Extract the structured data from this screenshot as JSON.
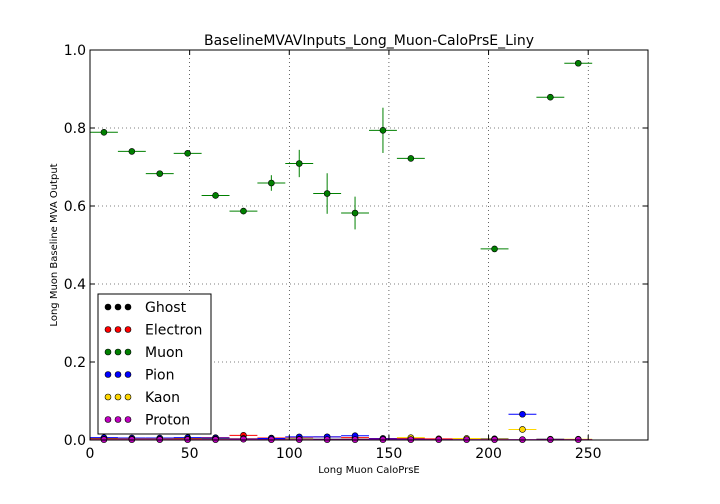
{
  "chart_data": {
    "type": "scatter",
    "title": "BaselineMVAVInputs_Long_Muon-CaloPrsE_Liny",
    "xlabel": "Long Muon CaloPrsE",
    "ylabel": "Long Muon Baseline MVA Output",
    "xlim": [
      0,
      280
    ],
    "ylim": [
      0,
      1.0
    ],
    "xticks": [
      "0",
      "50",
      "100",
      "150",
      "200",
      "250"
    ],
    "yticks": [
      "0.0",
      "0.2",
      "0.4",
      "0.6",
      "0.8",
      "1.0"
    ],
    "grid": true,
    "legend_position": "lower-left",
    "bin_half_width": 7,
    "series": [
      {
        "name": "Ghost",
        "color": "#000000",
        "points": [
          {
            "x": 7,
            "y": 0.005,
            "err": 0.002
          },
          {
            "x": 21,
            "y": 0.004,
            "err": 0.002
          },
          {
            "x": 35,
            "y": 0.003,
            "err": 0.002
          },
          {
            "x": 49,
            "y": 0.004,
            "err": 0.002
          },
          {
            "x": 63,
            "y": 0.004,
            "err": 0.002
          },
          {
            "x": 77,
            "y": 0.003,
            "err": 0.002
          },
          {
            "x": 91,
            "y": 0.003,
            "err": 0.002
          },
          {
            "x": 105,
            "y": 0.003,
            "err": 0.002
          },
          {
            "x": 119,
            "y": 0.002,
            "err": 0.002
          },
          {
            "x": 133,
            "y": 0.002,
            "err": 0.002
          },
          {
            "x": 147,
            "y": 0.002,
            "err": 0.002
          },
          {
            "x": 161,
            "y": 0.002,
            "err": 0.002
          },
          {
            "x": 175,
            "y": 0.002,
            "err": 0.002
          },
          {
            "x": 203,
            "y": 0.003,
            "err": 0.002
          },
          {
            "x": 231,
            "y": 0.002,
            "err": 0.002
          }
        ]
      },
      {
        "name": "Electron",
        "color": "#ff0000",
        "points": [
          {
            "x": 7,
            "y": 0.003,
            "err": 0.002
          },
          {
            "x": 21,
            "y": 0.003,
            "err": 0.002
          },
          {
            "x": 35,
            "y": 0.004,
            "err": 0.002
          },
          {
            "x": 49,
            "y": 0.005,
            "err": 0.002
          },
          {
            "x": 63,
            "y": 0.006,
            "err": 0.002
          },
          {
            "x": 77,
            "y": 0.012,
            "err": 0.003
          },
          {
            "x": 91,
            "y": 0.005,
            "err": 0.002
          },
          {
            "x": 105,
            "y": 0.007,
            "err": 0.002
          },
          {
            "x": 119,
            "y": 0.008,
            "err": 0.003
          },
          {
            "x": 133,
            "y": 0.006,
            "err": 0.003
          },
          {
            "x": 147,
            "y": 0.004,
            "err": 0.002
          },
          {
            "x": 161,
            "y": 0.004,
            "err": 0.002
          },
          {
            "x": 175,
            "y": 0.003,
            "err": 0.002
          }
        ]
      },
      {
        "name": "Muon",
        "color": "#008000",
        "points": [
          {
            "x": 7,
            "y": 0.789,
            "err": 0.003
          },
          {
            "x": 21,
            "y": 0.74,
            "err": 0.004
          },
          {
            "x": 35,
            "y": 0.683,
            "err": 0.005
          },
          {
            "x": 49,
            "y": 0.735,
            "err": 0.005
          },
          {
            "x": 63,
            "y": 0.627,
            "err": 0.008
          },
          {
            "x": 77,
            "y": 0.587,
            "err": 0.008
          },
          {
            "x": 91,
            "y": 0.659,
            "err": 0.02
          },
          {
            "x": 105,
            "y": 0.709,
            "err": 0.035
          },
          {
            "x": 119,
            "y": 0.632,
            "err": 0.052
          },
          {
            "x": 133,
            "y": 0.582,
            "err": 0.042
          },
          {
            "x": 147,
            "y": 0.794,
            "err": 0.058
          },
          {
            "x": 161,
            "y": 0.722,
            "err": 0.005
          },
          {
            "x": 203,
            "y": 0.49,
            "err": 0.005
          },
          {
            "x": 231,
            "y": 0.879,
            "err": 0.004
          },
          {
            "x": 245,
            "y": 0.966,
            "err": 0.004
          }
        ]
      },
      {
        "name": "Pion",
        "color": "#0000ff",
        "points": [
          {
            "x": 7,
            "y": 0.006,
            "err": 0.002
          },
          {
            "x": 21,
            "y": 0.005,
            "err": 0.002
          },
          {
            "x": 35,
            "y": 0.005,
            "err": 0.002
          },
          {
            "x": 49,
            "y": 0.006,
            "err": 0.002
          },
          {
            "x": 63,
            "y": 0.005,
            "err": 0.002
          },
          {
            "x": 77,
            "y": 0.004,
            "err": 0.002
          },
          {
            "x": 91,
            "y": 0.004,
            "err": 0.002
          },
          {
            "x": 105,
            "y": 0.008,
            "err": 0.003
          },
          {
            "x": 119,
            "y": 0.008,
            "err": 0.003
          },
          {
            "x": 133,
            "y": 0.011,
            "err": 0.003
          },
          {
            "x": 147,
            "y": 0.003,
            "err": 0.002
          },
          {
            "x": 161,
            "y": 0.002,
            "err": 0.002
          },
          {
            "x": 217,
            "y": 0.066,
            "err": 0.004
          }
        ]
      },
      {
        "name": "Kaon",
        "color": "#ffd700",
        "points": [
          {
            "x": 7,
            "y": 0.002,
            "err": 0.002
          },
          {
            "x": 21,
            "y": 0.002,
            "err": 0.002
          },
          {
            "x": 35,
            "y": 0.002,
            "err": 0.002
          },
          {
            "x": 49,
            "y": 0.002,
            "err": 0.002
          },
          {
            "x": 63,
            "y": 0.002,
            "err": 0.002
          },
          {
            "x": 77,
            "y": 0.003,
            "err": 0.002
          },
          {
            "x": 105,
            "y": 0.002,
            "err": 0.002
          },
          {
            "x": 161,
            "y": 0.006,
            "err": 0.002
          },
          {
            "x": 189,
            "y": 0.004,
            "err": 0.002
          },
          {
            "x": 203,
            "y": 0.002,
            "err": 0.002
          },
          {
            "x": 217,
            "y": 0.027,
            "err": 0.004
          },
          {
            "x": 245,
            "y": 0.002,
            "err": 0.002
          }
        ]
      },
      {
        "name": "Proton",
        "color": "#c000c0",
        "points": [
          {
            "x": 7,
            "y": 0.001,
            "err": 0.001
          },
          {
            "x": 21,
            "y": 0.001,
            "err": 0.001
          },
          {
            "x": 35,
            "y": 0.001,
            "err": 0.001
          },
          {
            "x": 49,
            "y": 0.001,
            "err": 0.001
          },
          {
            "x": 63,
            "y": 0.001,
            "err": 0.001
          },
          {
            "x": 77,
            "y": 0.002,
            "err": 0.001
          },
          {
            "x": 91,
            "y": 0.001,
            "err": 0.001
          },
          {
            "x": 105,
            "y": 0.001,
            "err": 0.001
          },
          {
            "x": 119,
            "y": 0.001,
            "err": 0.001
          },
          {
            "x": 133,
            "y": 0.001,
            "err": 0.001
          },
          {
            "x": 147,
            "y": 0.001,
            "err": 0.001
          },
          {
            "x": 161,
            "y": 0.001,
            "err": 0.001
          },
          {
            "x": 175,
            "y": 0.001,
            "err": 0.001
          },
          {
            "x": 189,
            "y": 0.001,
            "err": 0.001
          },
          {
            "x": 203,
            "y": 0.001,
            "err": 0.001
          },
          {
            "x": 217,
            "y": 0.001,
            "err": 0.001
          },
          {
            "x": 231,
            "y": 0.001,
            "err": 0.001
          },
          {
            "x": 245,
            "y": 0.001,
            "err": 0.001
          }
        ]
      }
    ]
  }
}
